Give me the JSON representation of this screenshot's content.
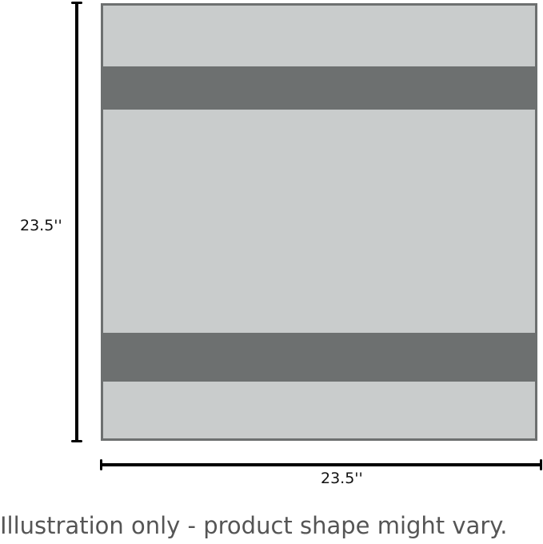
{
  "dimensions": {
    "height_label": "23.5''",
    "width_label": "23.5''"
  },
  "caption": "Illustration only - product shape might vary.",
  "colors": {
    "product_fill": "#c9cccc",
    "band_and_border": "#6d7070",
    "dimension_lines": "#000000"
  }
}
